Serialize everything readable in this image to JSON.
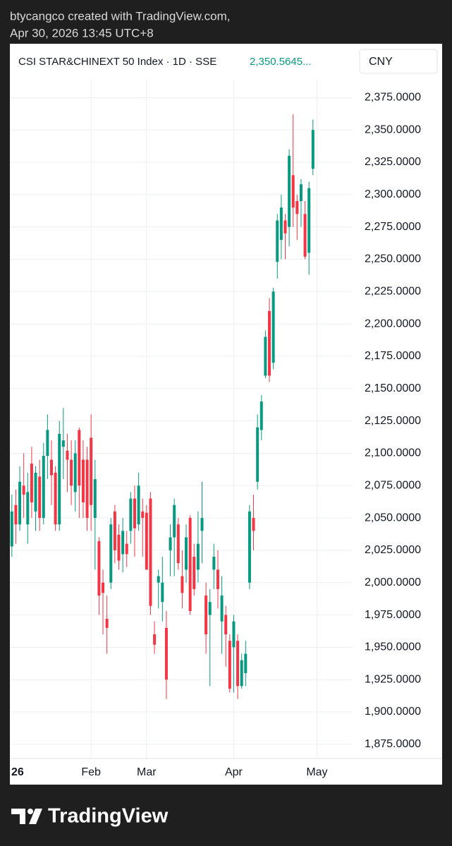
{
  "header": {
    "line1": "btycangco created with TradingView.com,",
    "line2": "Apr 30, 2026 13:45 UTC+8"
  },
  "footer": {
    "brand": "TradingView"
  },
  "chart_data": {
    "type": "candlestick",
    "title": "CSI STAR&CHINEXT 50 Index · 1D · SSE",
    "last_price_label": "2,350.5645...",
    "currency": "CNY",
    "up_color": "#089981",
    "down_color": "#f23645",
    "grid": true,
    "open": [
      2028,
      2060,
      2045,
      2075,
      2045,
      2092,
      2055,
      2082,
      2050,
      2098,
      2095,
      2085,
      2045,
      2105,
      2102,
      2095,
      2070,
      2118,
      2095,
      2095,
      2112,
      2050,
      2032,
      2000,
      1972,
      2000,
      2055,
      2037,
      2022,
      2030,
      2040,
      2065,
      2045,
      2055,
      2054,
      2065,
      1960,
      2000,
      1985,
      1965,
      2025,
      2035,
      2045,
      2005,
      2010,
      2050,
      2020,
      2010,
      2040,
      1990,
      1975,
      2010,
      2010,
      1970,
      1975,
      1955,
      1950,
      1955,
      1920,
      1930,
      2000,
      2050,
      2078,
      2118,
      2160,
      2210,
      2170,
      2248,
      2265,
      2280,
      2275,
      2315,
      2295,
      2295,
      2285,
      2255,
      2320
    ],
    "high": [
      2068,
      2072,
      2090,
      2100,
      2085,
      2105,
      2090,
      2095,
      2108,
      2130,
      2110,
      2090,
      2125,
      2135,
      2115,
      2110,
      2110,
      2120,
      2110,
      2105,
      2130,
      2095,
      2035,
      2010,
      1990,
      2050,
      2060,
      2045,
      2050,
      2040,
      2070,
      2075,
      2085,
      2065,
      2060,
      2070,
      1970,
      2010,
      2020,
      1978,
      2045,
      2065,
      2050,
      2025,
      2045,
      2052,
      2030,
      2055,
      2078,
      2000,
      1995,
      2030,
      2025,
      2005,
      1982,
      1960,
      1975,
      1960,
      1945,
      1955,
      2060,
      2068,
      2130,
      2145,
      2195,
      2220,
      2228,
      2285,
      2300,
      2285,
      2335,
      2362,
      2300,
      2312,
      2295,
      2310,
      2358
    ],
    "low": [
      2020,
      2030,
      2040,
      2050,
      2030,
      2050,
      2040,
      2040,
      2045,
      2080,
      2060,
      2040,
      2040,
      2080,
      2070,
      2060,
      2055,
      2050,
      2050,
      2040,
      2040,
      2010,
      1975,
      1960,
      1945,
      1995,
      2015,
      2010,
      2008,
      2012,
      2030,
      2020,
      2040,
      2020,
      2010,
      1975,
      1945,
      1980,
      1970,
      1910,
      2005,
      2005,
      2010,
      1980,
      2000,
      1975,
      1990,
      2000,
      2015,
      1945,
      1920,
      1995,
      1980,
      1945,
      1935,
      1915,
      1915,
      1910,
      1918,
      1920,
      1995,
      2025,
      2072,
      2110,
      2158,
      2155,
      2165,
      2235,
      2250,
      2250,
      2260,
      2275,
      2265,
      2275,
      2250,
      2238,
      2315
    ],
    "close": [
      2055,
      2045,
      2078,
      2068,
      2070,
      2062,
      2085,
      2050,
      2098,
      2118,
      2083,
      2045,
      2115,
      2110,
      2095,
      2075,
      2100,
      2075,
      2062,
      2050,
      2060,
      2080,
      1990,
      1992,
      1965,
      2045,
      2025,
      2017,
      2040,
      2022,
      2065,
      2042,
      2075,
      2050,
      2010,
      1982,
      1952,
      2005,
      2000,
      1925,
      2035,
      2060,
      2015,
      1992,
      2035,
      1978,
      1995,
      2030,
      2050,
      1960,
      1985,
      2020,
      1995,
      1990,
      1960,
      1918,
      1970,
      1920,
      1940,
      1945,
      2055,
      2040,
      2120,
      2140,
      2190,
      2160,
      2225,
      2280,
      2290,
      2270,
      2330,
      2290,
      2285,
      2308,
      2252,
      2305,
      2350
    ],
    "xlim": [
      -0.5,
      86
    ],
    "xticks": [
      {
        "value": 0,
        "label": "26"
      },
      {
        "value": 20,
        "label": "Feb"
      },
      {
        "value": 34,
        "label": "Mar"
      },
      {
        "value": 56,
        "label": "Apr"
      },
      {
        "value": 77,
        "label": "May"
      }
    ],
    "ylim": [
      1864,
      2415
    ],
    "yticks": [
      {
        "value": 2375,
        "label": "2,375.0000"
      },
      {
        "value": 2350,
        "label": "2,350.0000"
      },
      {
        "value": 2325,
        "label": "2,325.0000"
      },
      {
        "value": 2300,
        "label": "2,300.0000"
      },
      {
        "value": 2275,
        "label": "2,275.0000"
      },
      {
        "value": 2250,
        "label": "2,250.0000"
      },
      {
        "value": 2225,
        "label": "2,225.0000"
      },
      {
        "value": 2200,
        "label": "2,200.0000"
      },
      {
        "value": 2175,
        "label": "2,175.0000"
      },
      {
        "value": 2150,
        "label": "2,150.0000"
      },
      {
        "value": 2125,
        "label": "2,125.0000"
      },
      {
        "value": 2100,
        "label": "2,100.0000"
      },
      {
        "value": 2075,
        "label": "2,075.0000"
      },
      {
        "value": 2050,
        "label": "2,050.0000"
      },
      {
        "value": 2025,
        "label": "2,025.0000"
      },
      {
        "value": 2000,
        "label": "2,000.0000"
      },
      {
        "value": 1975,
        "label": "1,975.0000"
      },
      {
        "value": 1950,
        "label": "1,950.0000"
      },
      {
        "value": 1925,
        "label": "1,925.0000"
      },
      {
        "value": 1900,
        "label": "1,900.0000"
      },
      {
        "value": 1875,
        "label": "1,875.0000"
      }
    ]
  }
}
